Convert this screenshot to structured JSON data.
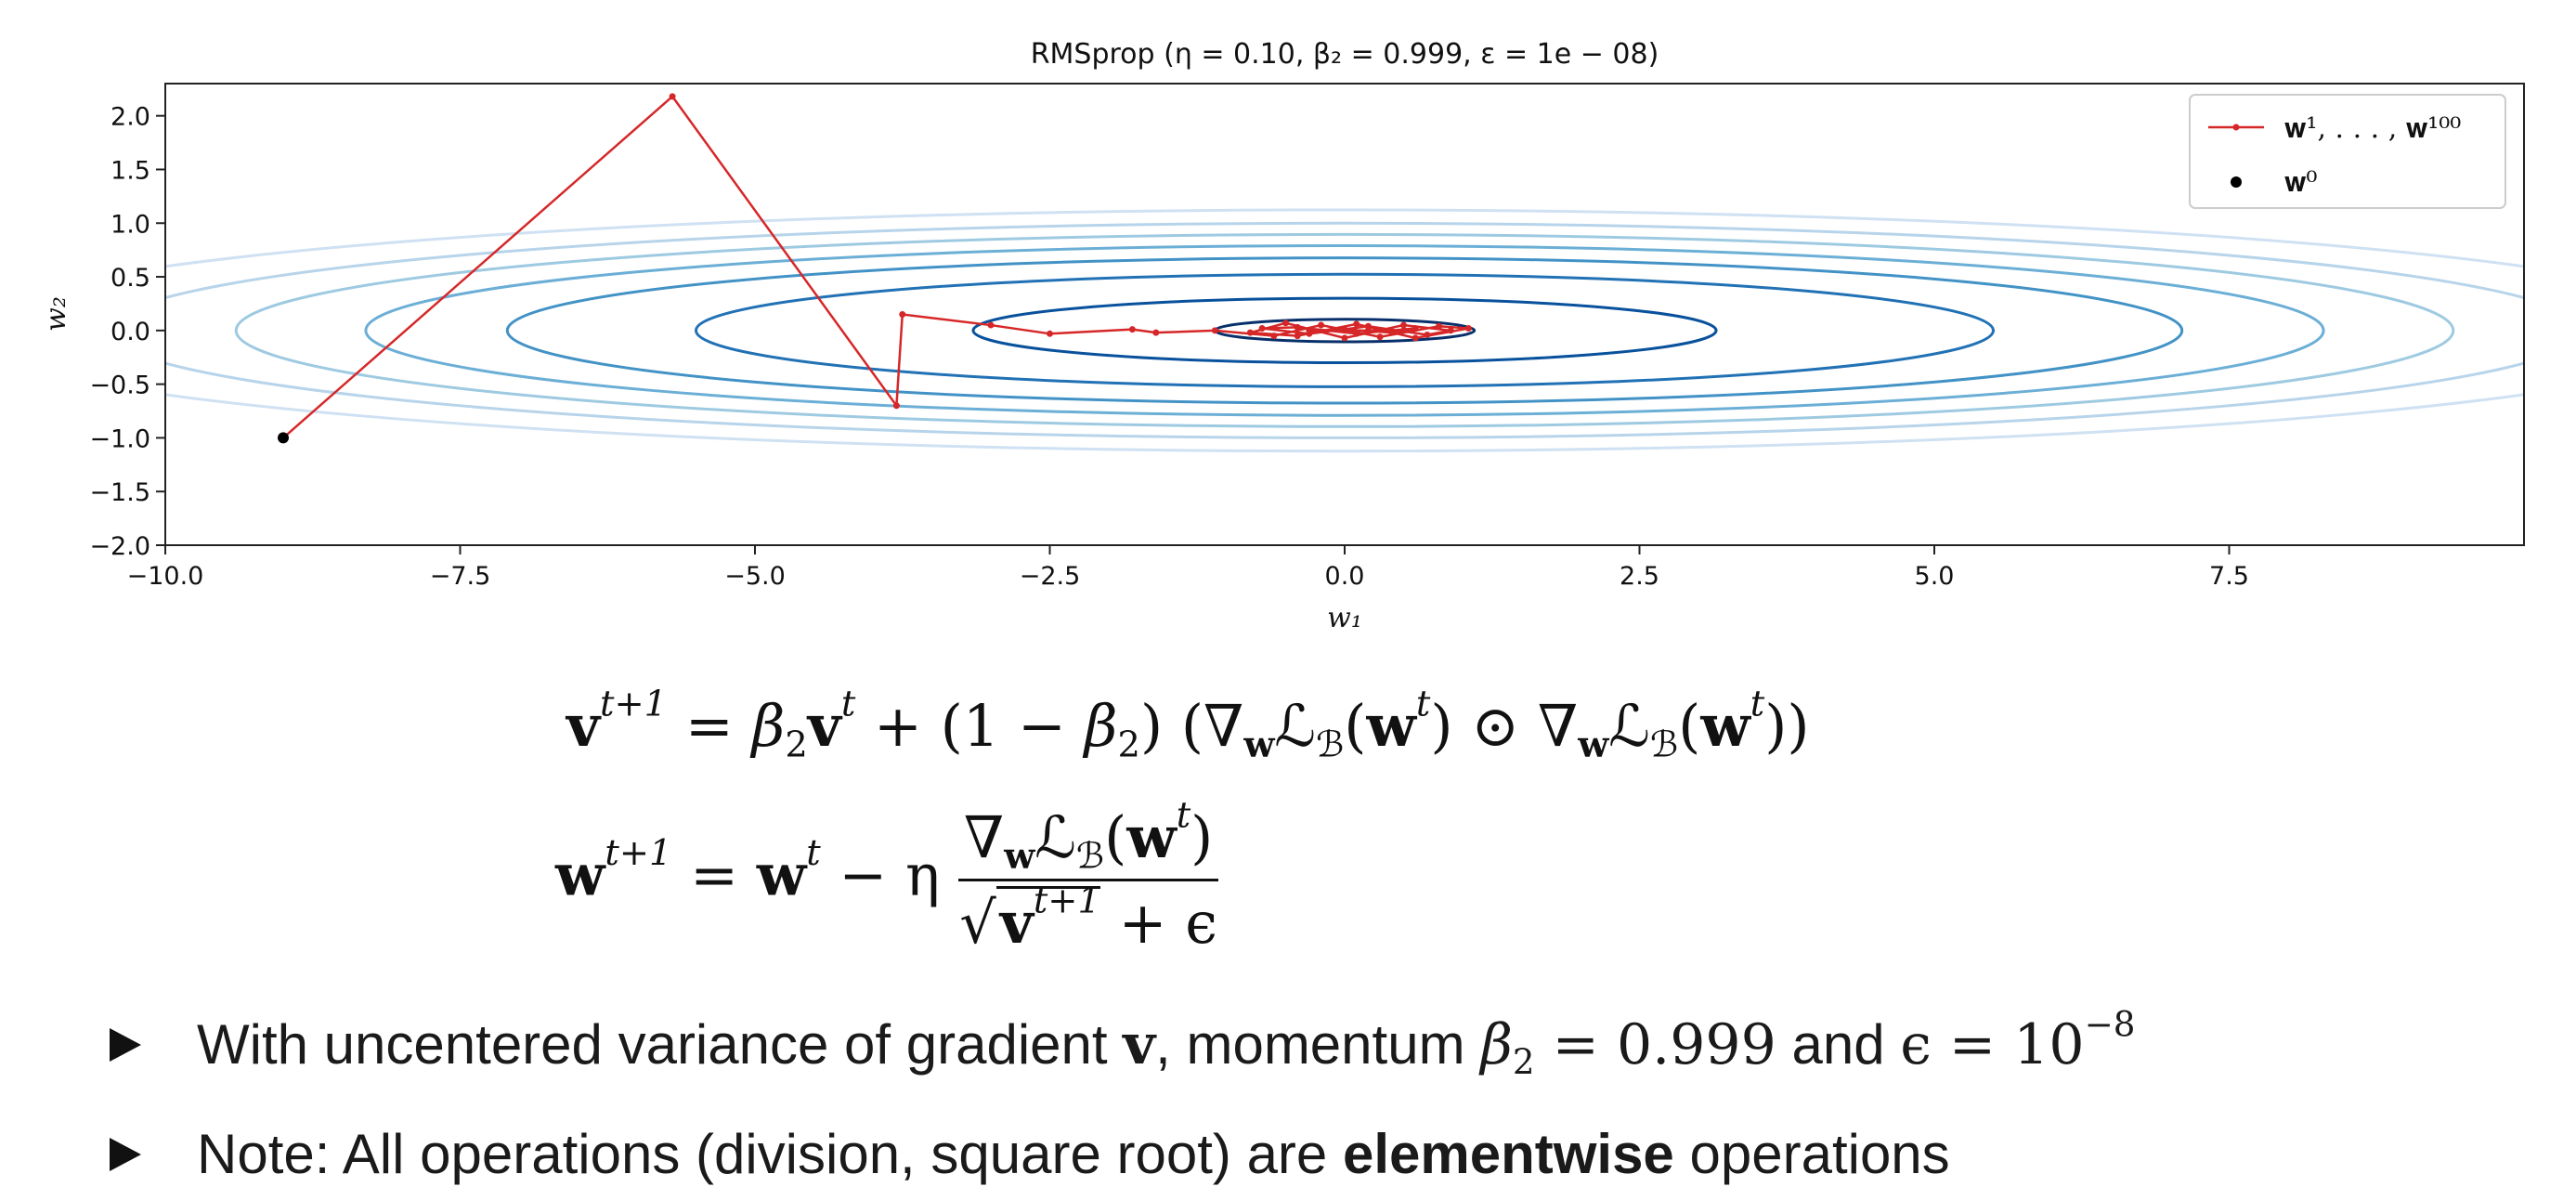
{
  "chart_data": {
    "type": "line",
    "title": "RMSprop (η = 0.10, β₂ = 0.999, ε = 1e − 08)",
    "xlabel": "w₁",
    "ylabel": "w₂",
    "xlim": [
      -10,
      10
    ],
    "ylim": [
      -2,
      2.3
    ],
    "xticks": [
      "−10.0",
      "−7.5",
      "−5.0",
      "−2.5",
      "0.0",
      "2.5",
      "5.0",
      "7.5"
    ],
    "xtick_values": [
      -10,
      -7.5,
      -5,
      -2.5,
      0,
      2.5,
      5,
      7.5
    ],
    "yticks": [
      "−2.0",
      "−1.5",
      "−1.0",
      "−0.5",
      "0.0",
      "0.5",
      "1.0",
      "1.5",
      "2.0"
    ],
    "ytick_values": [
      -2,
      -1.5,
      -1,
      -0.5,
      0,
      0.5,
      1,
      1.5,
      2
    ],
    "grid": false,
    "legend_position": "top-right",
    "contour_semi_axes_w1": [
      1.1,
      3.15,
      5.5,
      7.1,
      8.3,
      9.4,
      10.5,
      11.8
    ],
    "contour_colors": [
      "#08306b",
      "#08519c",
      "#2171b5",
      "#4292c6",
      "#6baed6",
      "#9ecae1",
      "#b7d4ea",
      "#cfe1f2"
    ],
    "series": [
      {
        "name": "𝐰¹, . . . , 𝐰¹⁰⁰",
        "color": "#d62728",
        "x": [
          -9.0,
          -5.7,
          -3.8,
          -3.75,
          -3.0,
          -2.5,
          -1.8,
          -1.6,
          -1.1,
          -0.6,
          -0.2,
          0.3,
          0.8,
          1.05,
          0.6,
          0.1,
          -0.4,
          -0.8,
          -0.5,
          0.0,
          0.5,
          0.9,
          0.7,
          0.2,
          -0.3,
          -0.7,
          -0.4,
          0.1,
          0.6,
          0.4,
          0.0,
          -0.3,
          0.2,
          0.5
        ],
        "y": [
          -1.0,
          2.18,
          -0.7,
          0.15,
          0.05,
          -0.03,
          0.01,
          -0.02,
          0.0,
          -0.05,
          0.05,
          -0.06,
          0.04,
          0.02,
          -0.07,
          0.06,
          -0.05,
          -0.02,
          0.07,
          -0.07,
          0.05,
          0.0,
          -0.04,
          0.04,
          -0.03,
          0.02,
          0.03,
          -0.03,
          0.02,
          -0.02,
          0.01,
          0.0,
          0.0,
          0.0
        ]
      },
      {
        "name": "𝐰⁰",
        "color": "#000000",
        "x": [
          -9.0
        ],
        "y": [
          -1.0
        ]
      }
    ]
  },
  "equations": {
    "v_update": {
      "v": "v",
      "t_plus_1": "t+1",
      "t": "t",
      "equals": " = ",
      "beta": "β",
      "two": "2",
      "plus": " + (1 − ",
      "close": ") (",
      "nabla": "∇",
      "w": "w",
      "L": "ℒ",
      "B": "ℬ",
      "odot": " ⊙ ",
      "end": ")"
    },
    "w_update": {
      "w": "w",
      "t_plus_1": "t+1",
      "t": "t",
      "equals": " = ",
      "minus_eta": " − η ",
      "nabla": "∇",
      "L": "ℒ",
      "B": "ℬ",
      "sqrt": "√",
      "v": "v",
      "plus_eps": " + ϵ"
    }
  },
  "bullets": {
    "b1_text1": "With uncentered variance of gradient ",
    "b1_v": "v",
    "b1_text2": ", momentum ",
    "b1_beta": "β",
    "b1_two": "2",
    "b1_eq1": " = 0.999",
    "b1_text3": " and ",
    "b1_eps": "ϵ = 10",
    "b1_exp": "−8",
    "b2_text1": "Note: All operations (division, square root) are ",
    "b2_bold": "elementwise",
    "b2_text2": " operations"
  }
}
